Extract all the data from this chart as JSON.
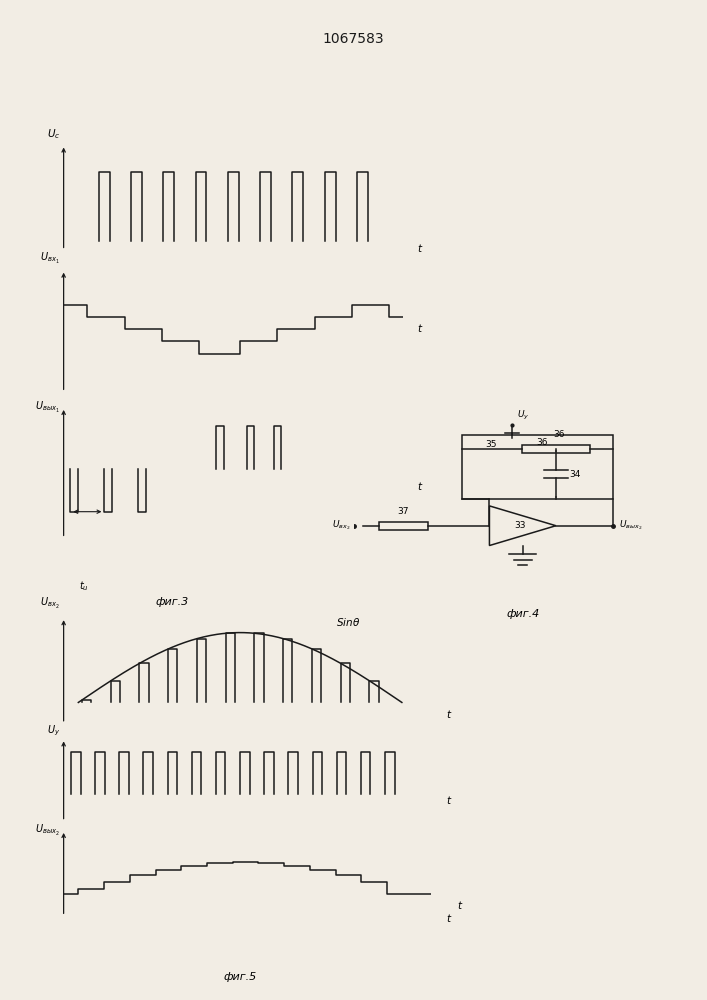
{
  "title": "1067583",
  "title_fontsize": 10,
  "bg_color": "#f2ede4",
  "line_color": "#1a1a1a",
  "fig3_label": "фиг.3",
  "fig4_label": "фиг.4",
  "fig5_label": "фиг.5",
  "lw": 1.1
}
